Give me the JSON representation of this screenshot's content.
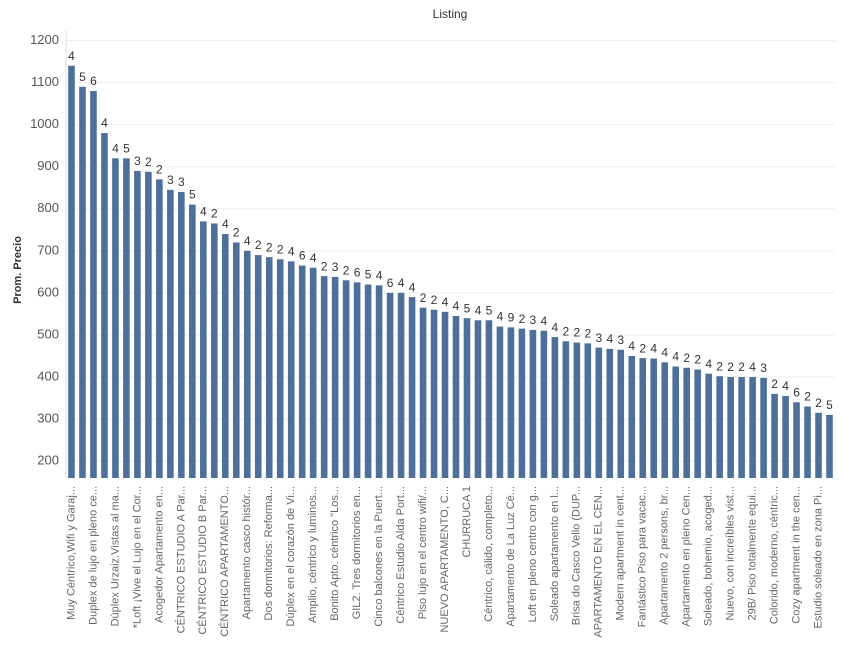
{
  "chart_data": {
    "type": "bar",
    "title": "Listing",
    "y_label": "Prom. Precio",
    "color": "#4e6f99",
    "categories": [
      "Muy Céntrico,Wifi y Garaj...",
      null,
      "Duplex de lujo en pleno ce...",
      null,
      "Dúplex Urzaiz.Vistas al ma...",
      null,
      "*Loft ¡Vive el Lujo en el Cor...",
      null,
      "Acogedor Apartamento en...",
      null,
      "CÉNTRICO ESTUDIO A Par...",
      null,
      "CÉNTRICO ESTUDIO B Par...",
      null,
      "CÉNTRICO APARTAMENTO...",
      null,
      "Apartamento casco histór...",
      null,
      "Dos dormitorios: Reforma...",
      null,
      "Dúplex en el corazón de Vi...",
      null,
      "Amplio, céntrico y luminos...",
      null,
      "Bonito Apto. céntrico \"Los...",
      null,
      "GIL2. Tres dormitorios en...",
      null,
      "Cinco balcones en la Puert...",
      null,
      "Céntrico Estudio Alda Port...",
      null,
      "Piso lujo en el centro wifi/...",
      null,
      "NUEVO APARTAMENTO, C...",
      null,
      "CHURRUCA 1",
      null,
      "Céntrico, cálido, completo...",
      null,
      "Apartamento de La Luz Cé...",
      null,
      "Loft en pleno centro con g...",
      null,
      "Soleado apartamento en l...",
      null,
      "Brisa do Casco Vello (DUP...",
      null,
      "APARTAMENTO EN EL CEN...",
      null,
      "Modern apartment in cent...",
      null,
      "Fantástico Piso para vacac...",
      null,
      "Apartamento 2 persons, br...",
      null,
      "Apartamento en pleno Cen...",
      null,
      "Soleado, bohemio, acoged...",
      null,
      "Nuevo, con increíbles vist...",
      null,
      "29B/ Piso totalmente equi...",
      null,
      "Colorido, moderno, céntric...",
      null,
      "Cozy apartment in the cen...",
      null,
      "Estudio soleado en zona Pi...",
      null
    ],
    "values": [
      1140,
      1090,
      1080,
      980,
      920,
      920,
      890,
      888,
      870,
      845,
      840,
      810,
      770,
      765,
      740,
      720,
      700,
      690,
      685,
      680,
      675,
      665,
      660,
      640,
      638,
      630,
      625,
      620,
      618,
      600,
      600,
      590,
      565,
      560,
      555,
      545,
      540,
      535,
      535,
      520,
      518,
      515,
      512,
      510,
      495,
      485,
      482,
      480,
      470,
      467,
      465,
      450,
      445,
      444,
      435,
      425,
      422,
      418,
      408,
      402,
      400,
      400,
      400,
      398,
      360,
      355,
      340,
      330,
      315,
      310
    ],
    "counts": [
      4,
      5,
      6,
      4,
      4,
      5,
      3,
      2,
      2,
      3,
      3,
      5,
      4,
      2,
      4,
      2,
      4,
      2,
      2,
      2,
      4,
      6,
      4,
      2,
      3,
      2,
      6,
      5,
      4,
      6,
      4,
      4,
      2,
      2,
      4,
      4,
      5,
      4,
      5,
      4,
      9,
      2,
      3,
      4,
      4,
      2,
      2,
      2,
      3,
      4,
      3,
      4,
      2,
      4,
      4,
      4,
      2,
      2,
      4,
      2,
      2,
      2,
      4,
      3,
      2,
      4,
      6,
      2,
      2,
      5
    ],
    "ylim": [
      160,
      1225
    ],
    "yticks": [
      200,
      300,
      400,
      500,
      600,
      700,
      800,
      900,
      1000,
      1100,
      1200
    ],
    "grid": true
  }
}
